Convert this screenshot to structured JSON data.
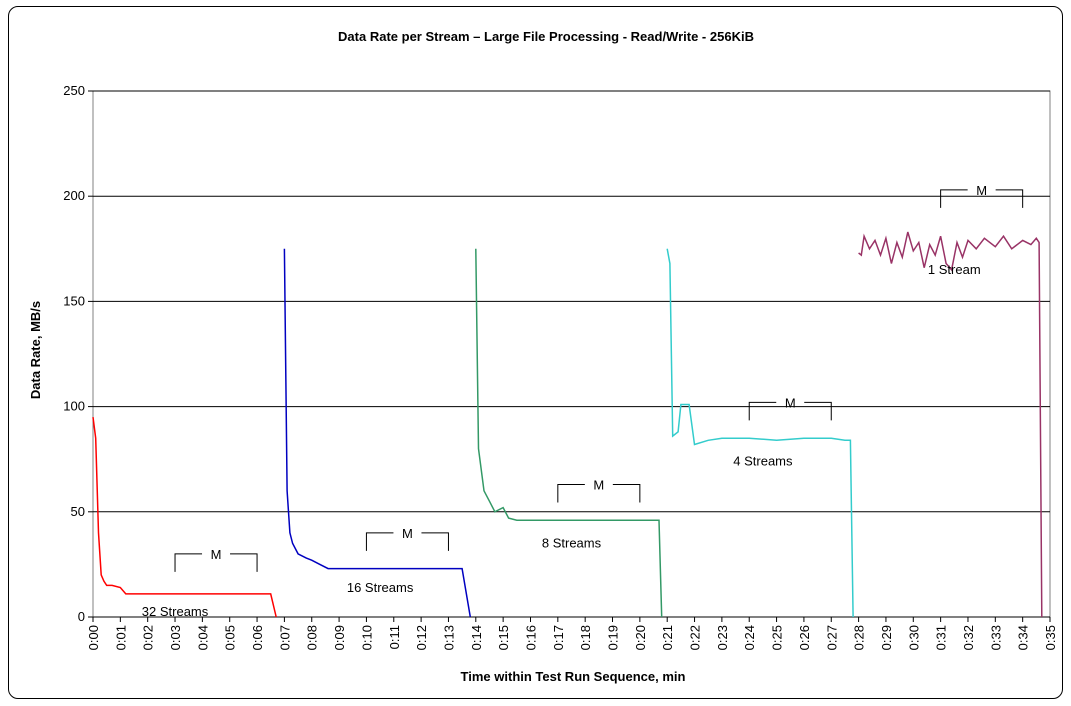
{
  "chart_data": {
    "type": "line",
    "title": "Data Rate per Stream – Large File Processing - Read/Write - 256KiB",
    "xlabel": "Time within Test Run Sequence, min",
    "ylabel": "Data Rate, MB/s",
    "ylim": [
      0,
      250
    ],
    "yticks": [
      "0",
      "50",
      "100",
      "150",
      "200",
      "250"
    ],
    "xticks": [
      "0:00",
      "0:01",
      "0:02",
      "0:03",
      "0:04",
      "0:05",
      "0:06",
      "0:07",
      "0:08",
      "0:09",
      "0:10",
      "0:11",
      "0:12",
      "0:13",
      "0:14",
      "0:15",
      "0:16",
      "0:17",
      "0:18",
      "0:19",
      "0:20",
      "0:21",
      "0:22",
      "0:23",
      "0:24",
      "0:25",
      "0:26",
      "0:27",
      "0:28",
      "0:29",
      "0:30",
      "0:31",
      "0:32",
      "0:33",
      "0:34",
      "0:35"
    ],
    "grid": "horizontal",
    "series": [
      {
        "name": "32 Streams",
        "color": "#ff0000",
        "points": [
          [
            0.0,
            95
          ],
          [
            0.1,
            85
          ],
          [
            0.2,
            40
          ],
          [
            0.3,
            20
          ],
          [
            0.4,
            17
          ],
          [
            0.5,
            15
          ],
          [
            0.7,
            15
          ],
          [
            1.0,
            14
          ],
          [
            1.2,
            11
          ],
          [
            1.5,
            11
          ],
          [
            2.0,
            11
          ],
          [
            2.5,
            11
          ],
          [
            3.0,
            11
          ],
          [
            3.5,
            11
          ],
          [
            4.0,
            11
          ],
          [
            4.5,
            11
          ],
          [
            5.0,
            11
          ],
          [
            5.5,
            11
          ],
          [
            6.0,
            11
          ],
          [
            6.5,
            11
          ],
          [
            6.7,
            0
          ]
        ]
      },
      {
        "name": "16 Streams",
        "color": "#0000c0",
        "points": [
          [
            7.0,
            175
          ],
          [
            7.1,
            60
          ],
          [
            7.2,
            40
          ],
          [
            7.3,
            35
          ],
          [
            7.5,
            30
          ],
          [
            7.8,
            28
          ],
          [
            8.0,
            27
          ],
          [
            8.3,
            25
          ],
          [
            8.6,
            23
          ],
          [
            9.0,
            23
          ],
          [
            10.0,
            23
          ],
          [
            11.0,
            23
          ],
          [
            12.0,
            23
          ],
          [
            12.6,
            23
          ],
          [
            13.0,
            23
          ],
          [
            13.5,
            23
          ],
          [
            13.8,
            0
          ]
        ]
      },
      {
        "name": "8 Streams",
        "color": "#339966",
        "points": [
          [
            14.0,
            175
          ],
          [
            14.1,
            80
          ],
          [
            14.3,
            60
          ],
          [
            14.5,
            55
          ],
          [
            14.7,
            50
          ],
          [
            15.0,
            52
          ],
          [
            15.2,
            47
          ],
          [
            15.5,
            46
          ],
          [
            16.0,
            46
          ],
          [
            17.0,
            46
          ],
          [
            18.0,
            46
          ],
          [
            19.0,
            46
          ],
          [
            20.0,
            46
          ],
          [
            20.7,
            46
          ],
          [
            20.8,
            0
          ]
        ]
      },
      {
        "name": "4 Streams",
        "color": "#33cccc",
        "points": [
          [
            21.0,
            175
          ],
          [
            21.1,
            168
          ],
          [
            21.2,
            86
          ],
          [
            21.4,
            88
          ],
          [
            21.5,
            101
          ],
          [
            21.8,
            101
          ],
          [
            22.0,
            82
          ],
          [
            22.5,
            84
          ],
          [
            23.0,
            85
          ],
          [
            24.0,
            85
          ],
          [
            25.0,
            84
          ],
          [
            26.0,
            85
          ],
          [
            27.0,
            85
          ],
          [
            27.5,
            84
          ],
          [
            27.7,
            84
          ],
          [
            27.8,
            0
          ]
        ]
      },
      {
        "name": "1 Stream",
        "color": "#993366",
        "points": [
          [
            28.0,
            173
          ],
          [
            28.1,
            172
          ],
          [
            28.2,
            181
          ],
          [
            28.4,
            175
          ],
          [
            28.6,
            179
          ],
          [
            28.8,
            172
          ],
          [
            29.0,
            180
          ],
          [
            29.2,
            168
          ],
          [
            29.4,
            178
          ],
          [
            29.6,
            171
          ],
          [
            29.8,
            183
          ],
          [
            30.0,
            174
          ],
          [
            30.2,
            178
          ],
          [
            30.4,
            166
          ],
          [
            30.6,
            177
          ],
          [
            30.8,
            172
          ],
          [
            31.0,
            181
          ],
          [
            31.2,
            168
          ],
          [
            31.4,
            165
          ],
          [
            31.6,
            178
          ],
          [
            31.8,
            171
          ],
          [
            32.0,
            179
          ],
          [
            32.3,
            175
          ],
          [
            32.6,
            180
          ],
          [
            33.0,
            176
          ],
          [
            33.3,
            181
          ],
          [
            33.6,
            175
          ],
          [
            34.0,
            179
          ],
          [
            34.3,
            177
          ],
          [
            34.5,
            180
          ],
          [
            34.6,
            178
          ],
          [
            34.7,
            0
          ]
        ]
      }
    ],
    "annotations": [
      {
        "text": "M",
        "x_start": 3.0,
        "x_end": 6.0,
        "y": 30
      },
      {
        "text": "M",
        "x_start": 10.0,
        "x_end": 13.0,
        "y": 40
      },
      {
        "text": "M",
        "x_start": 17.0,
        "x_end": 20.0,
        "y": 63
      },
      {
        "text": "M",
        "x_start": 24.0,
        "x_end": 27.0,
        "y": 102
      },
      {
        "text": "M",
        "x_start": 31.0,
        "x_end": 34.0,
        "y": 203
      }
    ],
    "series_labels": [
      {
        "text": "32 Streams",
        "x": 3.0,
        "y": 0.5
      },
      {
        "text": "16 Streams",
        "x": 10.5,
        "y": 12
      },
      {
        "text": "8 Streams",
        "x": 17.5,
        "y": 33
      },
      {
        "text": "4 Streams",
        "x": 24.5,
        "y": 72
      },
      {
        "text": "1 Stream",
        "x": 31.5,
        "y": 163
      }
    ]
  }
}
